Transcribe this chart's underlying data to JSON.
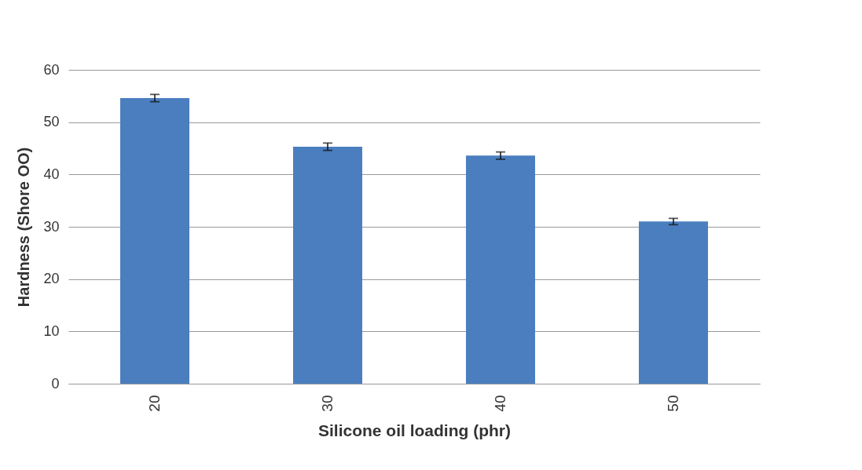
{
  "chart_data": {
    "type": "bar",
    "xlabel": "Silicone oil loading (phr)",
    "ylabel": "Hardness  (Shore OO)",
    "categories": [
      "20",
      "30",
      "40",
      "50"
    ],
    "values": [
      54.6,
      45.3,
      43.6,
      31.0
    ],
    "errors": [
      0.7,
      0.7,
      0.7,
      0.6
    ],
    "color": "#4a7ebf",
    "ylim": [
      0,
      60
    ],
    "yticks": [
      0,
      10,
      20,
      30,
      40,
      50,
      60
    ],
    "grid": "y"
  }
}
